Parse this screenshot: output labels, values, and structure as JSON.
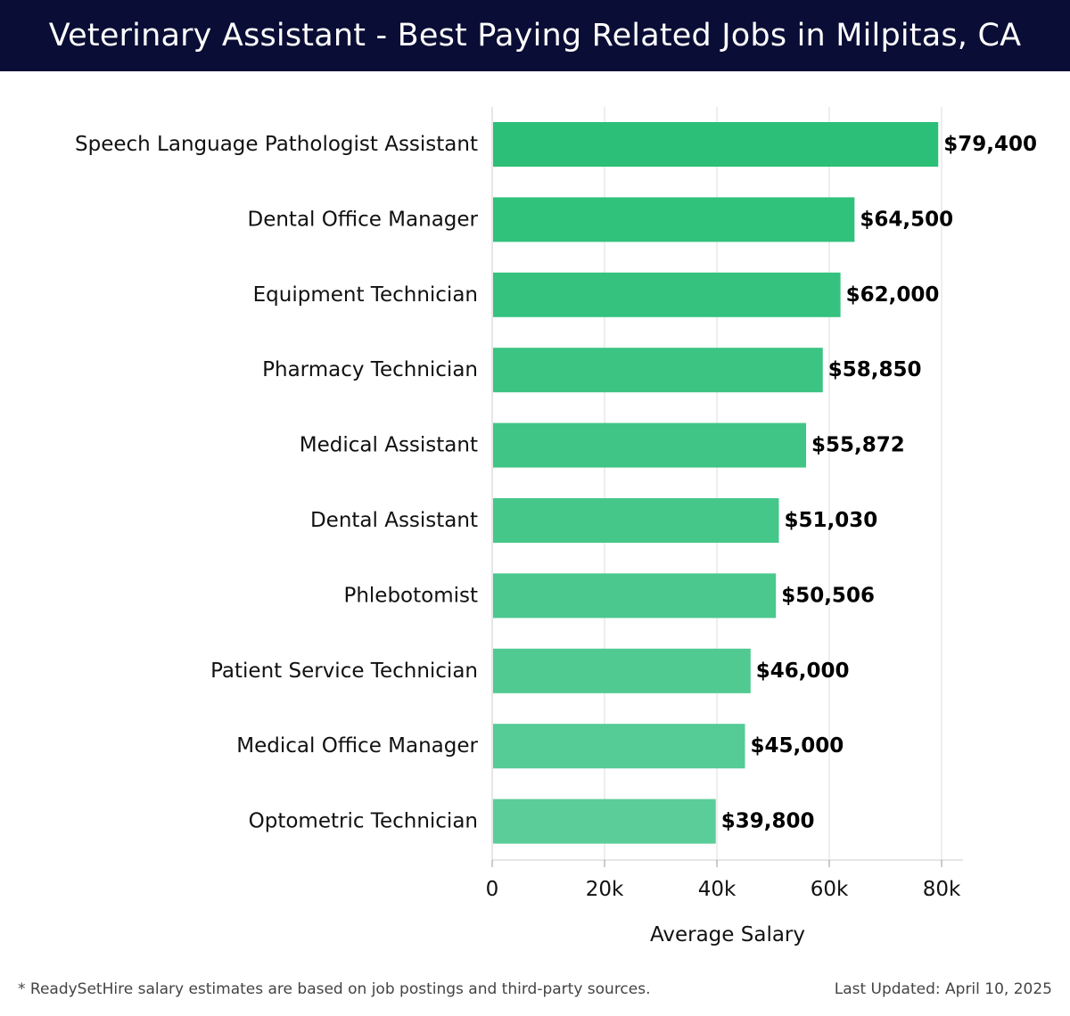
{
  "header": {
    "title": "Veterinary Assistant - Best Paying Related Jobs in Milpitas, CA"
  },
  "footer": {
    "note": "* ReadySetHire salary estimates are based on job postings and third-party sources.",
    "updated": "Last Updated: April 10, 2025"
  },
  "colors": {
    "header_bg": "#0a0d35",
    "bar_top": "#2bbf77",
    "bar_bottom": "#5acd99",
    "gridline": "#dddddd"
  },
  "chart_data": {
    "type": "bar",
    "orientation": "horizontal",
    "categories": [
      "Speech Language Pathologist Assistant",
      "Dental Office Manager",
      "Equipment Technician",
      "Pharmacy Technician",
      "Medical Assistant",
      "Dental Assistant",
      "Phlebotomist",
      "Patient Service Technician",
      "Medical Office Manager",
      "Optometric Technician"
    ],
    "values": [
      79400,
      64500,
      62000,
      58850,
      55872,
      51030,
      50506,
      46000,
      45000,
      39800
    ],
    "value_labels": [
      "$79,400",
      "$64,500",
      "$62,000",
      "$58,850",
      "$55,872",
      "$51,030",
      "$50,506",
      "$46,000",
      "$45,000",
      "$39,800"
    ],
    "xlabel": "Average Salary",
    "xlim": [
      0,
      80000
    ],
    "xticks": [
      0,
      20000,
      40000,
      60000,
      80000
    ],
    "xtick_labels": [
      "0",
      "20k",
      "40k",
      "60k",
      "80k"
    ],
    "grid": true
  }
}
